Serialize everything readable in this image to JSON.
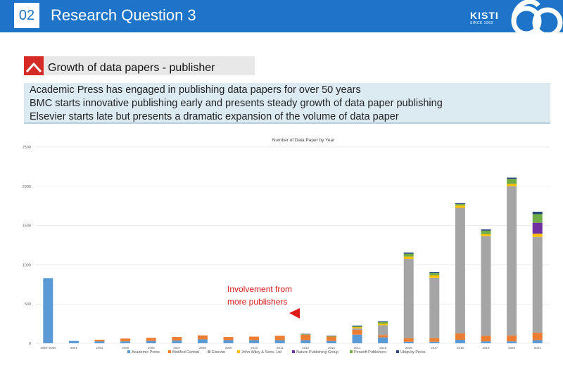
{
  "header": {
    "section_number": "02",
    "title": "Research Question 3"
  },
  "logo": {
    "brand": "KISTI",
    "since": "SINCE 1962"
  },
  "subheading": {
    "text": "Growth of data papers - publisher"
  },
  "notes": [
    "Academic Press has engaged in publishing data papers for over 50 years",
    "BMC starts innovative publishing early and presents steady growth of data paper publishing",
    "Elsevier starts late but presents a dramatic expansion of the volume of data paper"
  ],
  "annotation": {
    "line1": "Involvement from",
    "line2": "more publishers"
  },
  "colors": {
    "header_bg": "#1d74c9",
    "accent_red": "#d42b26",
    "notes_bg": "#dcebf2"
  },
  "chart_data": {
    "type": "bar",
    "stacked": true,
    "title": "Number of Data Paper by Year",
    "xlabel": "",
    "ylabel": "",
    "ylim": [
      0,
      2500
    ],
    "yticks": [
      "0",
      "500",
      "1000",
      "1500",
      "2000",
      "2500"
    ],
    "categories": [
      "1969~2000",
      "2001",
      "2004",
      "2005",
      "2006",
      "2007",
      "2008",
      "2009",
      "2010",
      "2011",
      "2012",
      "2013",
      "2014",
      "2015",
      "2016",
      "2017",
      "2018",
      "2019",
      "2020",
      "2021"
    ],
    "legend_position": "bottom",
    "series": [
      {
        "name": "Academic Press",
        "color": "#5b9bd5",
        "values": [
          830,
          30,
          25,
          25,
          30,
          35,
          50,
          40,
          40,
          40,
          40,
          30,
          110,
          75,
          20,
          20,
          45,
          25,
          25,
          40
        ]
      },
      {
        "name": "BioMed Central",
        "color": "#ed7d31",
        "values": [
          0,
          0,
          20,
          35,
          40,
          45,
          50,
          40,
          45,
          55,
          70,
          55,
          60,
          30,
          45,
          45,
          80,
          70,
          75,
          95
        ]
      },
      {
        "name": "Elsevier",
        "color": "#a5a5a5",
        "values": [
          0,
          0,
          0,
          0,
          0,
          0,
          0,
          0,
          0,
          0,
          0,
          0,
          20,
          125,
          1010,
          770,
          1600,
          1270,
          1900,
          1220
        ]
      },
      {
        "name": "John Wiley & Sons, Ltd",
        "color": "#ffc000",
        "values": [
          0,
          0,
          0,
          0,
          0,
          0,
          0,
          0,
          0,
          0,
          0,
          0,
          15,
          20,
          30,
          30,
          30,
          25,
          30,
          40
        ]
      },
      {
        "name": "Nature Publishing Group",
        "color": "#7030a0",
        "values": [
          0,
          0,
          0,
          0,
          0,
          0,
          0,
          0,
          0,
          0,
          0,
          0,
          0,
          0,
          0,
          0,
          0,
          0,
          0,
          140
        ]
      },
      {
        "name": "Pensoft Publishers",
        "color": "#70ad47",
        "values": [
          0,
          0,
          0,
          0,
          0,
          0,
          0,
          0,
          0,
          0,
          5,
          5,
          10,
          20,
          35,
          30,
          20,
          45,
          65,
          110
        ]
      },
      {
        "name": "Ubiquity Press",
        "color": "#264478",
        "values": [
          0,
          0,
          0,
          0,
          0,
          0,
          0,
          0,
          0,
          0,
          5,
          5,
          10,
          10,
          15,
          10,
          10,
          15,
          15,
          30
        ]
      }
    ]
  }
}
